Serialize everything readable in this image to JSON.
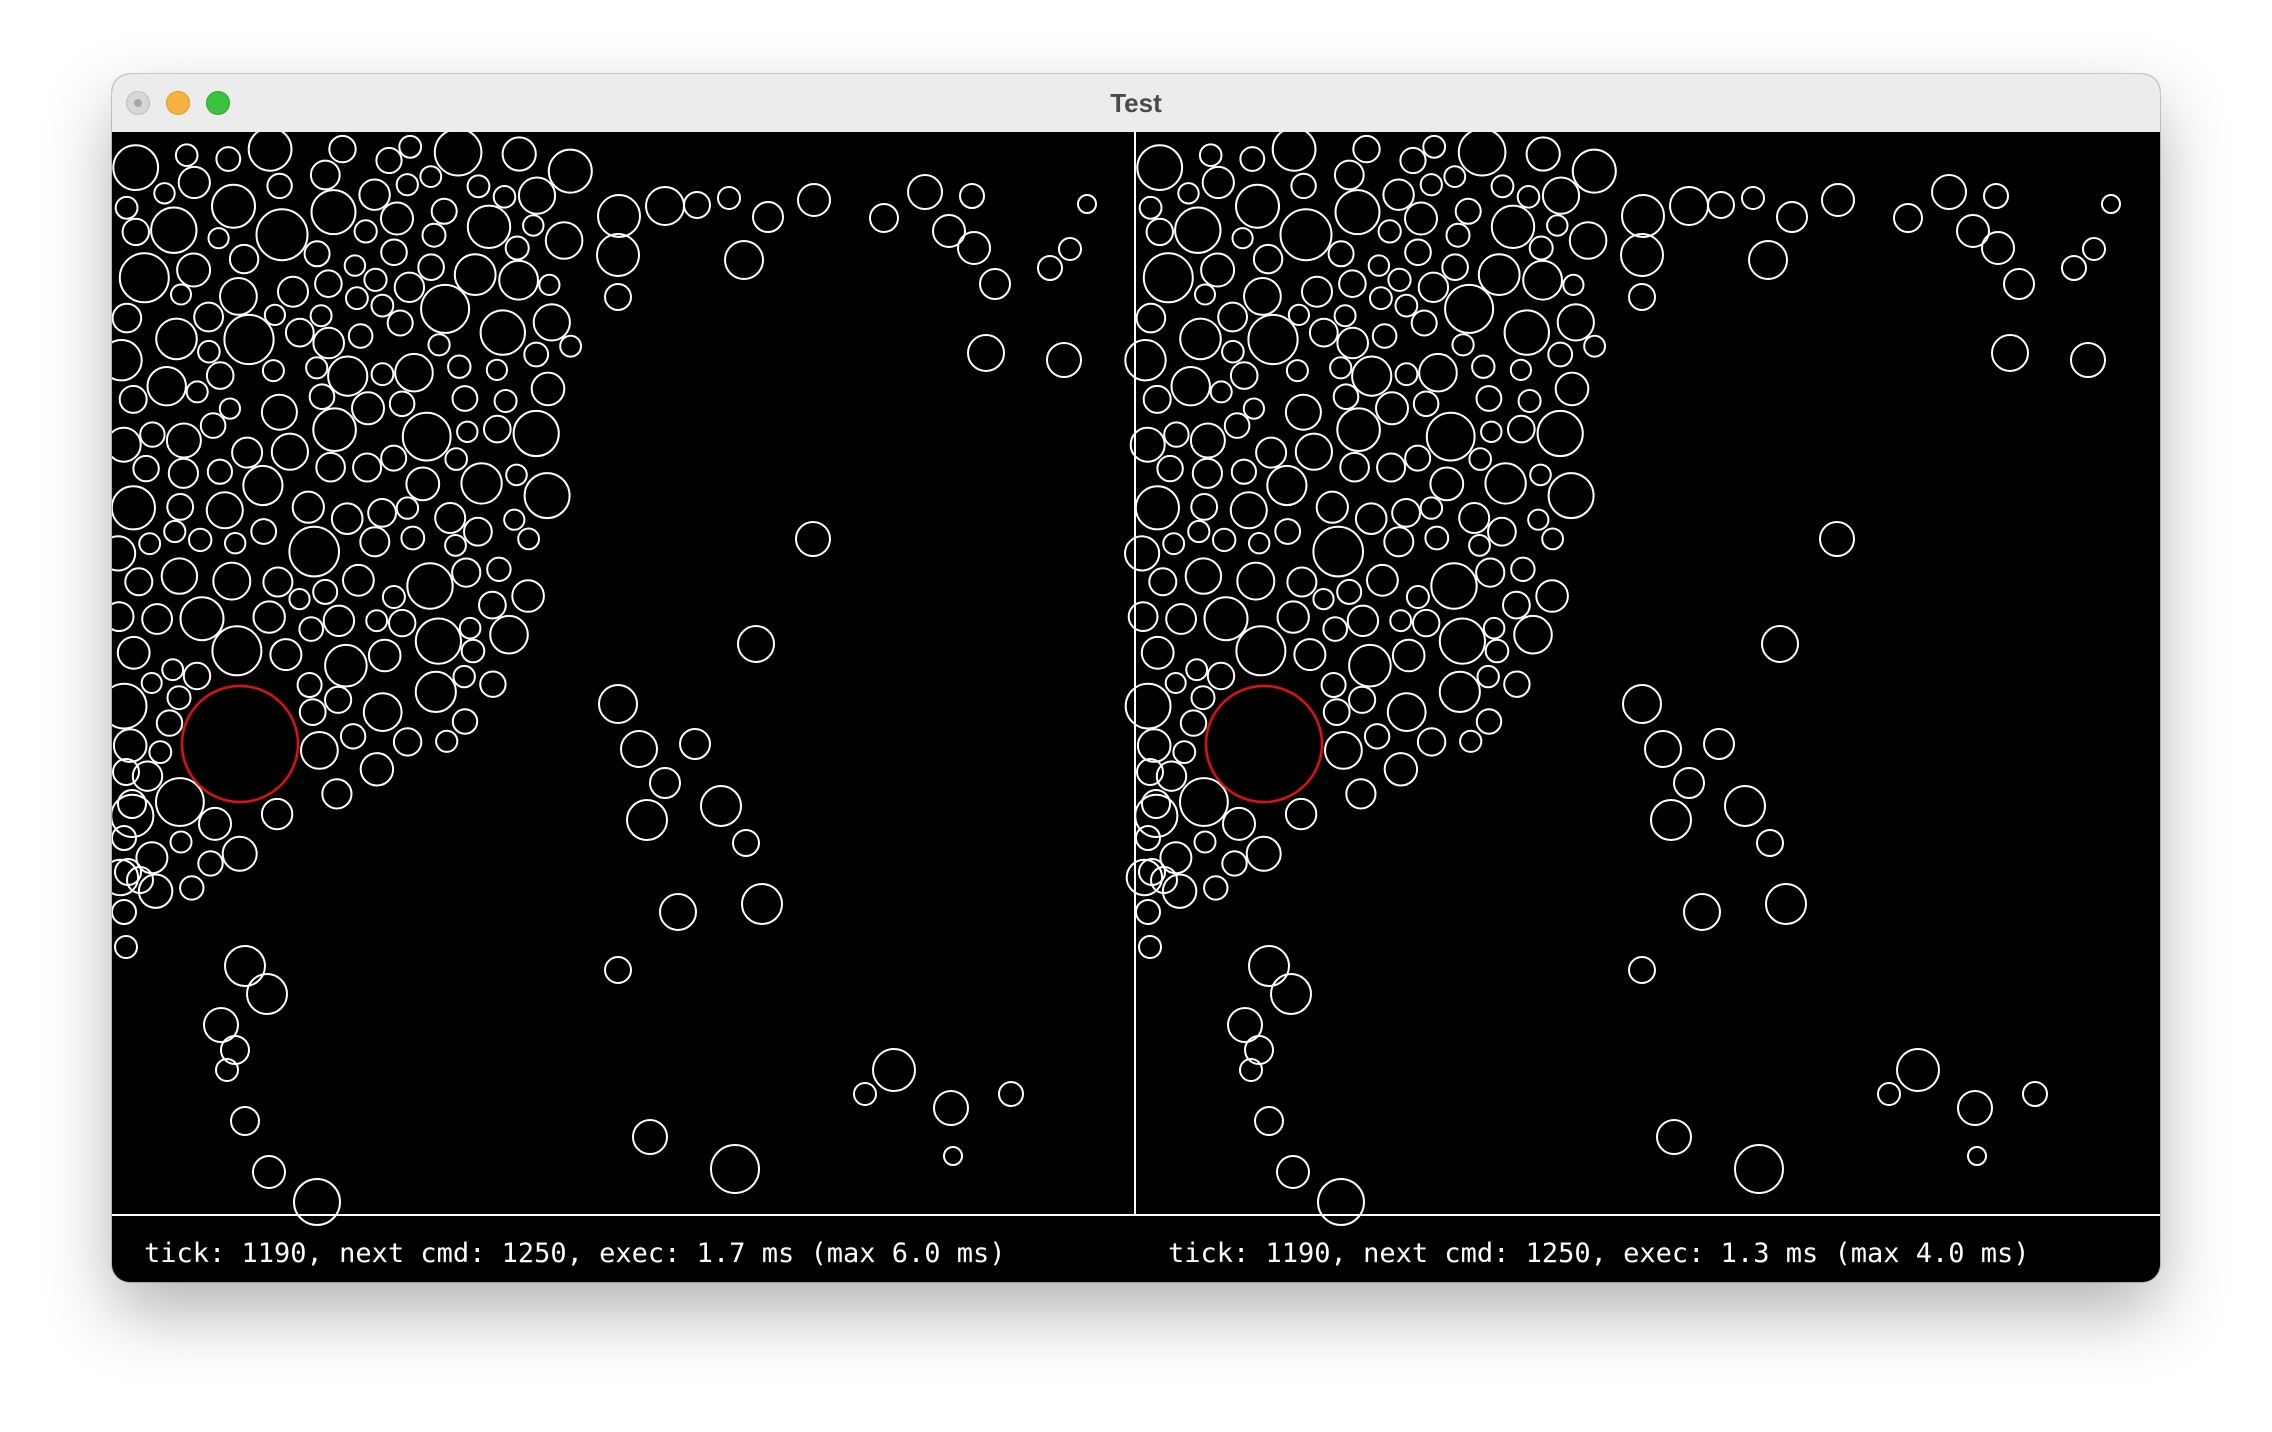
{
  "window": {
    "title": "Test"
  },
  "panes": [
    {
      "status": "tick: 1190, next cmd: 1250, exec: 1.7 ms (max 6.0 ms)"
    },
    {
      "status": "tick: 1190, next cmd: 1250, exec: 1.3 ms (max 4.0 ms)"
    }
  ],
  "colors": {
    "background": "#000000",
    "particle_stroke": "#ffffff",
    "highlight_stroke": "#e01010",
    "divider": "#ffffff"
  }
}
